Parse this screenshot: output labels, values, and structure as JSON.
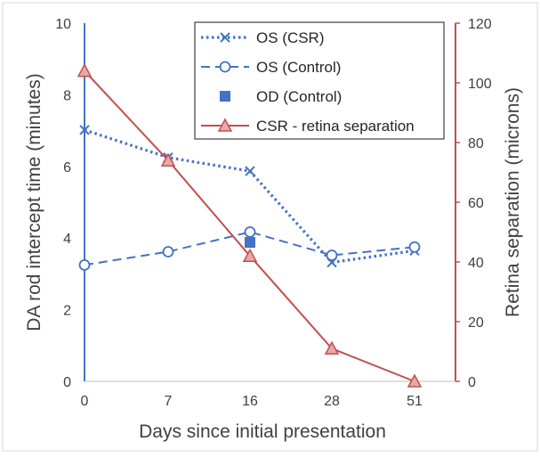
{
  "chart_data": {
    "type": "line",
    "title": "",
    "xlabel": "Days since initial presentation",
    "ylabel": "DA rod intercept time (minutes)",
    "y2label": "Retina separation (microns)",
    "categories": [
      "0",
      "7",
      "16",
      "28",
      "51"
    ],
    "ylim": [
      0,
      10
    ],
    "y2lim": [
      0,
      120
    ],
    "yticks": [
      "0",
      "2",
      "4",
      "6",
      "8",
      "10"
    ],
    "y2ticks": [
      "0",
      "20",
      "40",
      "60",
      "80",
      "100",
      "120"
    ],
    "grid": false,
    "legend_position": "top-right",
    "series": [
      {
        "name": "OS (CSR)",
        "axis": "left",
        "marker": "x",
        "line_style": "dotted",
        "color": "#4472C4",
        "values": [
          7.02,
          6.25,
          5.87,
          3.32,
          3.65
        ]
      },
      {
        "name": "OS (Control)",
        "axis": "left",
        "marker": "open-circle",
        "line_style": "dashed",
        "color": "#4472C4",
        "values": [
          3.25,
          3.62,
          4.17,
          3.52,
          3.75
        ]
      },
      {
        "name": "OD (Control)",
        "axis": "left",
        "marker": "filled-square",
        "line_style": "none",
        "color": "#4472C4",
        "values": [
          null,
          null,
          3.88,
          null,
          null
        ]
      },
      {
        "name": "CSR - retina separation",
        "axis": "right",
        "marker": "triangle",
        "line_style": "solid",
        "color": "#C0504D",
        "values": [
          104,
          74,
          42,
          11,
          0
        ]
      }
    ]
  }
}
